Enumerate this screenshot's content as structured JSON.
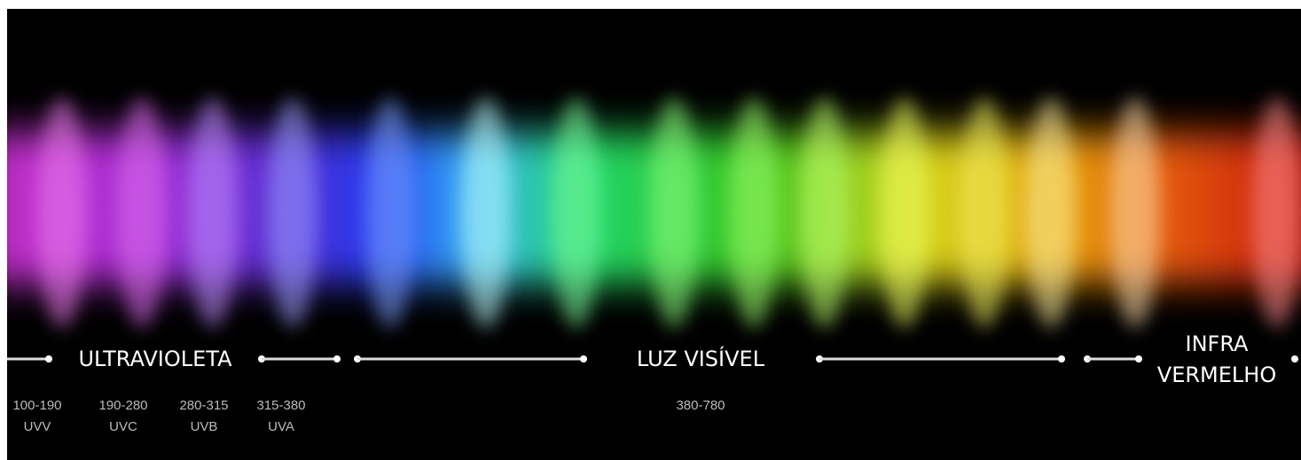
{
  "regions": [
    {
      "label": "ULTRAVIOLETA"
    },
    {
      "label": "LUZ VISÍVEL"
    },
    {
      "label_lines": [
        "INFRA",
        "VERMELHO"
      ]
    }
  ],
  "ranges": [
    {
      "range": "100-190",
      "name": "UVV"
    },
    {
      "range": "190-280",
      "name": "UVC"
    },
    {
      "range": "280-315",
      "name": "UVB"
    },
    {
      "range": "315-380",
      "name": "UVA"
    },
    {
      "range": "380-780"
    }
  ]
}
